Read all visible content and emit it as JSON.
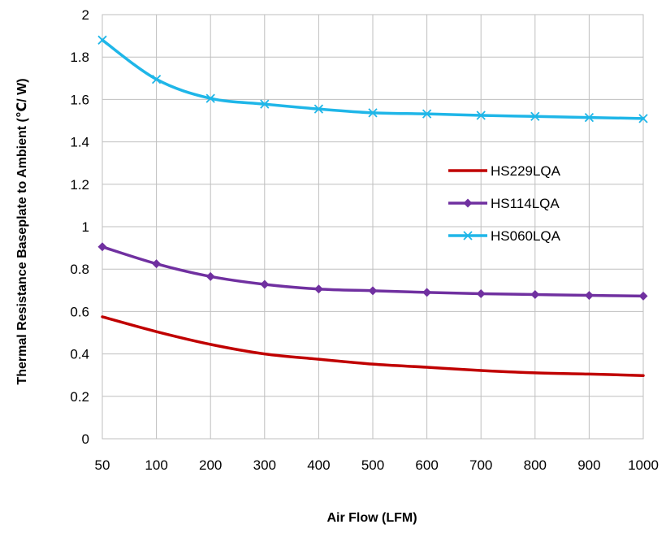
{
  "chart_data": {
    "type": "line",
    "title": "",
    "xlabel": "Air Flow (LFM)",
    "ylabel": "Thermal Resistance Baseplate to Ambient (℃/ W)",
    "categories": [
      "50",
      "100",
      "200",
      "300",
      "400",
      "500",
      "600",
      "700",
      "800",
      "900",
      "1000"
    ],
    "ylim": [
      0,
      2
    ],
    "yticks": [
      "0",
      "0.2",
      "0.4",
      "0.6",
      "0.8",
      "1",
      "1.2",
      "1.4",
      "1.6",
      "1.8",
      "2"
    ],
    "grid": true,
    "legend_position": "right",
    "series": [
      {
        "name": "HS229LQA",
        "color": "#c00000",
        "marker": "none",
        "values": [
          0.575,
          0.505,
          0.445,
          0.4,
          0.375,
          0.352,
          0.337,
          0.322,
          0.311,
          0.305,
          0.298
        ]
      },
      {
        "name": "HS114LQA",
        "color": "#7030a0",
        "marker": "diamond",
        "values": [
          0.905,
          0.825,
          0.765,
          0.728,
          0.706,
          0.698,
          0.69,
          0.684,
          0.68,
          0.676,
          0.673
        ]
      },
      {
        "name": "HS060LQA",
        "color": "#1fb6e8",
        "marker": "x",
        "values": [
          1.88,
          1.695,
          1.605,
          1.578,
          1.555,
          1.537,
          1.532,
          1.525,
          1.52,
          1.515,
          1.51
        ]
      }
    ]
  }
}
